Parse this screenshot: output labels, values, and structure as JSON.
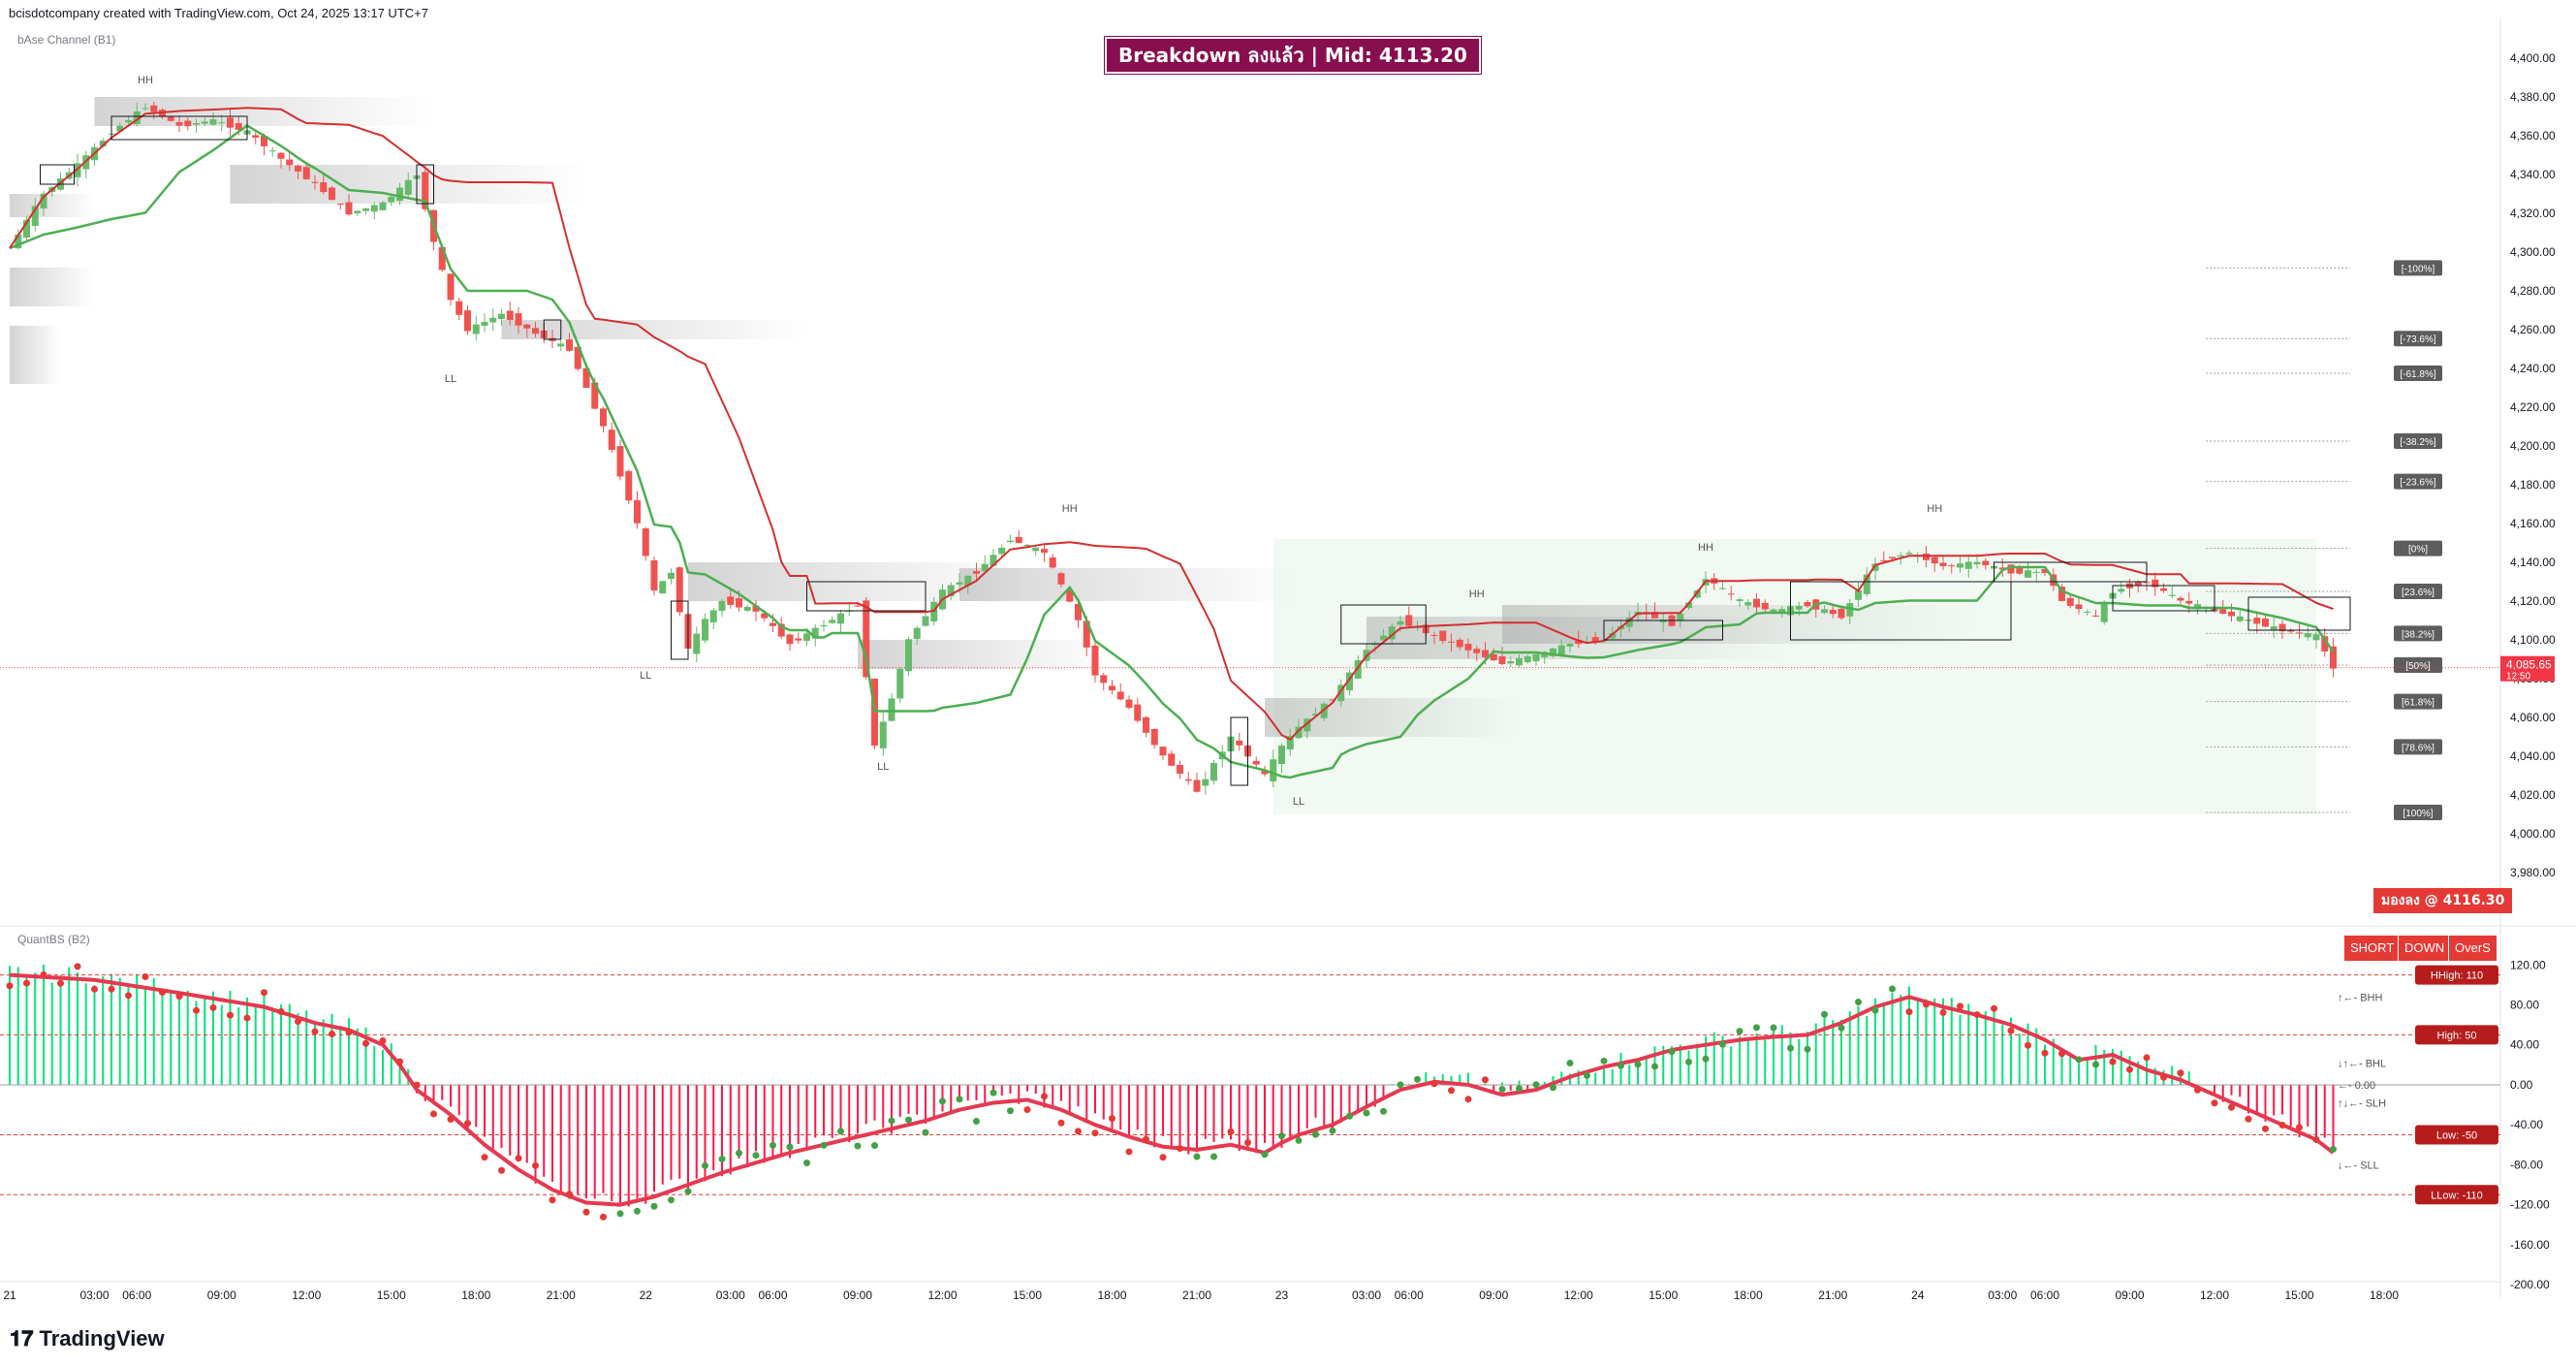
{
  "header": {
    "created_by": "bcisdotcompany created with TradingView.com, Oct 24, 2025 13:17 UTC+7"
  },
  "panes": {
    "main_title": "bAse Channel (B1)",
    "osc_title": "QuantBS (B2)"
  },
  "banner": {
    "text": "Breakdown ลงแล้ว | Mid: 4113.20",
    "color": "#880e4f"
  },
  "buy_label": "มองลง @ 4116.30",
  "signals": [
    "SHORT",
    "DOWN",
    "OverS"
  ],
  "brand": {
    "logo_text": "TradingView"
  },
  "colors": {
    "bull": "#26a69a",
    "bear": "#e53935",
    "green_line": "#4caf50",
    "red_line": "#d32f2f",
    "bull_fill": "#66bb6a",
    "bear_fill": "#ef5350"
  },
  "price_axis": {
    "ticks": [
      "4,400.00",
      "4,380.00",
      "4,360.00",
      "4,340.00",
      "4,320.00",
      "4,300.00",
      "4,280.00",
      "4,260.00",
      "4,240.00",
      "4,220.00",
      "4,200.00",
      "4,180.00",
      "4,160.00",
      "4,140.00",
      "4,120.00",
      "4,100.00",
      "4,080.00",
      "4,060.00",
      "4,040.00",
      "4,020.00",
      "4,000.00",
      "3,980.00"
    ],
    "current_price": "4,085.65",
    "countdown": "12:50"
  },
  "fib_levels": [
    {
      "label": "[-100%]",
      "price": 4291.8
    },
    {
      "label": "[-73.6%]",
      "price": 4255.4
    },
    {
      "label": "[-61.8%]",
      "price": 4237.5
    },
    {
      "label": "[-38.2%]",
      "price": 4202.5
    },
    {
      "label": "[-23.6%]",
      "price": 4181.7
    },
    {
      "label": "[0%]",
      "price": 4147.2
    },
    {
      "label": "[23.6%]",
      "price": 4125.0
    },
    {
      "label": "[38.2%]",
      "price": 4103.3
    },
    {
      "label": "[50%]",
      "price": 4087.0
    },
    {
      "label": "[61.8%]",
      "price": 4068.2
    },
    {
      "label": "[78.6%]",
      "price": 4044.8
    },
    {
      "label": "[100%]",
      "price": 4011.0
    }
  ],
  "swing_labels": [
    {
      "text": "HH",
      "time": 8,
      "price": 4387
    },
    {
      "text": "LL",
      "time": 26,
      "price": 4233
    },
    {
      "text": "LL",
      "time": 37.5,
      "price": 4080
    },
    {
      "text": "LL",
      "time": 51.5,
      "price": 4033
    },
    {
      "text": "HH",
      "time": 62.5,
      "price": 4166
    },
    {
      "text": "LL",
      "time": 76,
      "price": 4015
    },
    {
      "text": "HH",
      "time": 86.5,
      "price": 4122
    },
    {
      "text": "HH",
      "time": 100,
      "price": 4146
    },
    {
      "text": "HH",
      "time": 113.5,
      "price": 4166
    }
  ],
  "osc_axis": {
    "ticks": [
      "120.00",
      "80.00",
      "40.00",
      "0.00",
      "-40.00",
      "-80.00",
      "-120.00",
      "-160.00",
      "-200.00"
    ],
    "levels": [
      {
        "label": "HHigh: 110",
        "value": 110
      },
      {
        "label": "High: 50",
        "value": 50
      },
      {
        "label": "Low: -50",
        "value": -50
      },
      {
        "label": "LLow: -110",
        "value": -110
      }
    ]
  },
  "osc_legend": [
    "↑←- BHH",
    "↓↑←- BHL",
    "←- 0.00",
    "↑↓←- SLH",
    "↓←- SLL"
  ],
  "time_axis": {
    "labels": [
      {
        "t": 0,
        "text": "21"
      },
      {
        "t": 5,
        "text": "03:00"
      },
      {
        "t": 7.5,
        "text": "06:00"
      },
      {
        "t": 12.5,
        "text": "09:00"
      },
      {
        "t": 17.5,
        "text": "12:00"
      },
      {
        "t": 22.5,
        "text": "15:00"
      },
      {
        "t": 27.5,
        "text": "18:00"
      },
      {
        "t": 32.5,
        "text": "21:00"
      },
      {
        "t": 37.5,
        "text": "22"
      },
      {
        "t": 42.5,
        "text": "03:00"
      },
      {
        "t": 45,
        "text": "06:00"
      },
      {
        "t": 50,
        "text": "09:00"
      },
      {
        "t": 55,
        "text": "12:00"
      },
      {
        "t": 60,
        "text": "15:00"
      },
      {
        "t": 65,
        "text": "18:00"
      },
      {
        "t": 70,
        "text": "21:00"
      },
      {
        "t": 75,
        "text": "23"
      },
      {
        "t": 80,
        "text": "03:00"
      },
      {
        "t": 82.5,
        "text": "06:00"
      },
      {
        "t": 87.5,
        "text": "09:00"
      },
      {
        "t": 92.5,
        "text": "12:00"
      },
      {
        "t": 97.5,
        "text": "15:00"
      },
      {
        "t": 102.5,
        "text": "18:00"
      },
      {
        "t": 107.5,
        "text": "21:00"
      },
      {
        "t": 112.5,
        "text": "24"
      },
      {
        "t": 117.5,
        "text": "03:00"
      },
      {
        "t": 120,
        "text": "06:00"
      },
      {
        "t": 125,
        "text": "09:00"
      },
      {
        "t": 130,
        "text": "12:00"
      },
      {
        "t": 135,
        "text": "15:00"
      },
      {
        "t": 140,
        "text": "18:00"
      }
    ]
  },
  "chart_data": {
    "type": "candlestick_with_oscillator",
    "symbol_note": "Gold (XAU) 30-minute style intraday chart",
    "price_series_approx": [
      [
        0,
        4302
      ],
      [
        2,
        4330
      ],
      [
        4,
        4345
      ],
      [
        6,
        4362
      ],
      [
        8,
        4375
      ],
      [
        10,
        4365
      ],
      [
        12,
        4368
      ],
      [
        14,
        4362
      ],
      [
        16,
        4348
      ],
      [
        18,
        4335
      ],
      [
        20,
        4320
      ],
      [
        22,
        4325
      ],
      [
        24,
        4340
      ],
      [
        25,
        4305
      ],
      [
        26,
        4275
      ],
      [
        27,
        4260
      ],
      [
        29,
        4268
      ],
      [
        31,
        4258
      ],
      [
        33,
        4250
      ],
      [
        35,
        4210
      ],
      [
        37,
        4160
      ],
      [
        38,
        4125
      ],
      [
        39,
        4135
      ],
      [
        40,
        4095
      ],
      [
        41,
        4110
      ],
      [
        42,
        4120
      ],
      [
        44,
        4115
      ],
      [
        46,
        4098
      ],
      [
        48,
        4108
      ],
      [
        50,
        4118
      ],
      [
        51,
        4045
      ],
      [
        52,
        4070
      ],
      [
        53,
        4100
      ],
      [
        55,
        4125
      ],
      [
        57,
        4135
      ],
      [
        59,
        4152
      ],
      [
        61,
        4145
      ],
      [
        62,
        4128
      ],
      [
        63,
        4110
      ],
      [
        64,
        4082
      ],
      [
        66,
        4065
      ],
      [
        68,
        4040
      ],
      [
        70,
        4022
      ],
      [
        72,
        4050
      ],
      [
        74,
        4030
      ],
      [
        75,
        4045
      ],
      [
        76,
        4055
      ],
      [
        78,
        4070
      ],
      [
        80,
        4095
      ],
      [
        82,
        4110
      ],
      [
        84,
        4102
      ],
      [
        86,
        4095
      ],
      [
        88,
        4088
      ],
      [
        90,
        4092
      ],
      [
        92,
        4098
      ],
      [
        94,
        4100
      ],
      [
        96,
        4115
      ],
      [
        98,
        4108
      ],
      [
        100,
        4132
      ],
      [
        102,
        4120
      ],
      [
        104,
        4115
      ],
      [
        106,
        4118
      ],
      [
        108,
        4112
      ],
      [
        110,
        4140
      ],
      [
        112,
        4145
      ],
      [
        114,
        4138
      ],
      [
        116,
        4140
      ],
      [
        118,
        4135
      ],
      [
        120,
        4135
      ],
      [
        121,
        4120
      ],
      [
        123,
        4112
      ],
      [
        124,
        4125
      ],
      [
        126,
        4130
      ],
      [
        128,
        4120
      ],
      [
        130,
        4115
      ],
      [
        132,
        4110
      ],
      [
        134,
        4105
      ],
      [
        136,
        4102
      ],
      [
        137,
        4086
      ]
    ],
    "price_range": [
      3970,
      4410
    ],
    "oscillator_series_approx": [
      [
        0,
        110
      ],
      [
        5,
        105
      ],
      [
        10,
        92
      ],
      [
        15,
        78
      ],
      [
        18,
        62
      ],
      [
        20,
        55
      ],
      [
        22,
        40
      ],
      [
        23,
        20
      ],
      [
        24,
        -5
      ],
      [
        26,
        -30
      ],
      [
        28,
        -60
      ],
      [
        30,
        -85
      ],
      [
        32,
        -105
      ],
      [
        34,
        -118
      ],
      [
        36,
        -120
      ],
      [
        38,
        -112
      ],
      [
        40,
        -100
      ],
      [
        42,
        -88
      ],
      [
        44,
        -78
      ],
      [
        46,
        -68
      ],
      [
        48,
        -60
      ],
      [
        50,
        -52
      ],
      [
        52,
        -44
      ],
      [
        54,
        -36
      ],
      [
        56,
        -25
      ],
      [
        58,
        -18
      ],
      [
        60,
        -15
      ],
      [
        62,
        -25
      ],
      [
        64,
        -40
      ],
      [
        66,
        -52
      ],
      [
        68,
        -62
      ],
      [
        70,
        -65
      ],
      [
        72,
        -60
      ],
      [
        74,
        -68
      ],
      [
        75,
        -58
      ],
      [
        76,
        -50
      ],
      [
        78,
        -40
      ],
      [
        80,
        -22
      ],
      [
        82,
        -5
      ],
      [
        84,
        3
      ],
      [
        86,
        0
      ],
      [
        88,
        -10
      ],
      [
        90,
        -5
      ],
      [
        92,
        8
      ],
      [
        94,
        18
      ],
      [
        96,
        25
      ],
      [
        98,
        35
      ],
      [
        100,
        40
      ],
      [
        102,
        45
      ],
      [
        104,
        48
      ],
      [
        106,
        50
      ],
      [
        108,
        62
      ],
      [
        110,
        78
      ],
      [
        112,
        88
      ],
      [
        114,
        78
      ],
      [
        116,
        70
      ],
      [
        118,
        60
      ],
      [
        120,
        45
      ],
      [
        122,
        25
      ],
      [
        124,
        30
      ],
      [
        126,
        15
      ],
      [
        128,
        5
      ],
      [
        130,
        -10
      ],
      [
        132,
        -25
      ],
      [
        134,
        -40
      ],
      [
        136,
        -55
      ],
      [
        137,
        -68
      ]
    ],
    "oscillator_range": [
      -200,
      130
    ],
    "ylabel": "",
    "xlabel": ""
  }
}
